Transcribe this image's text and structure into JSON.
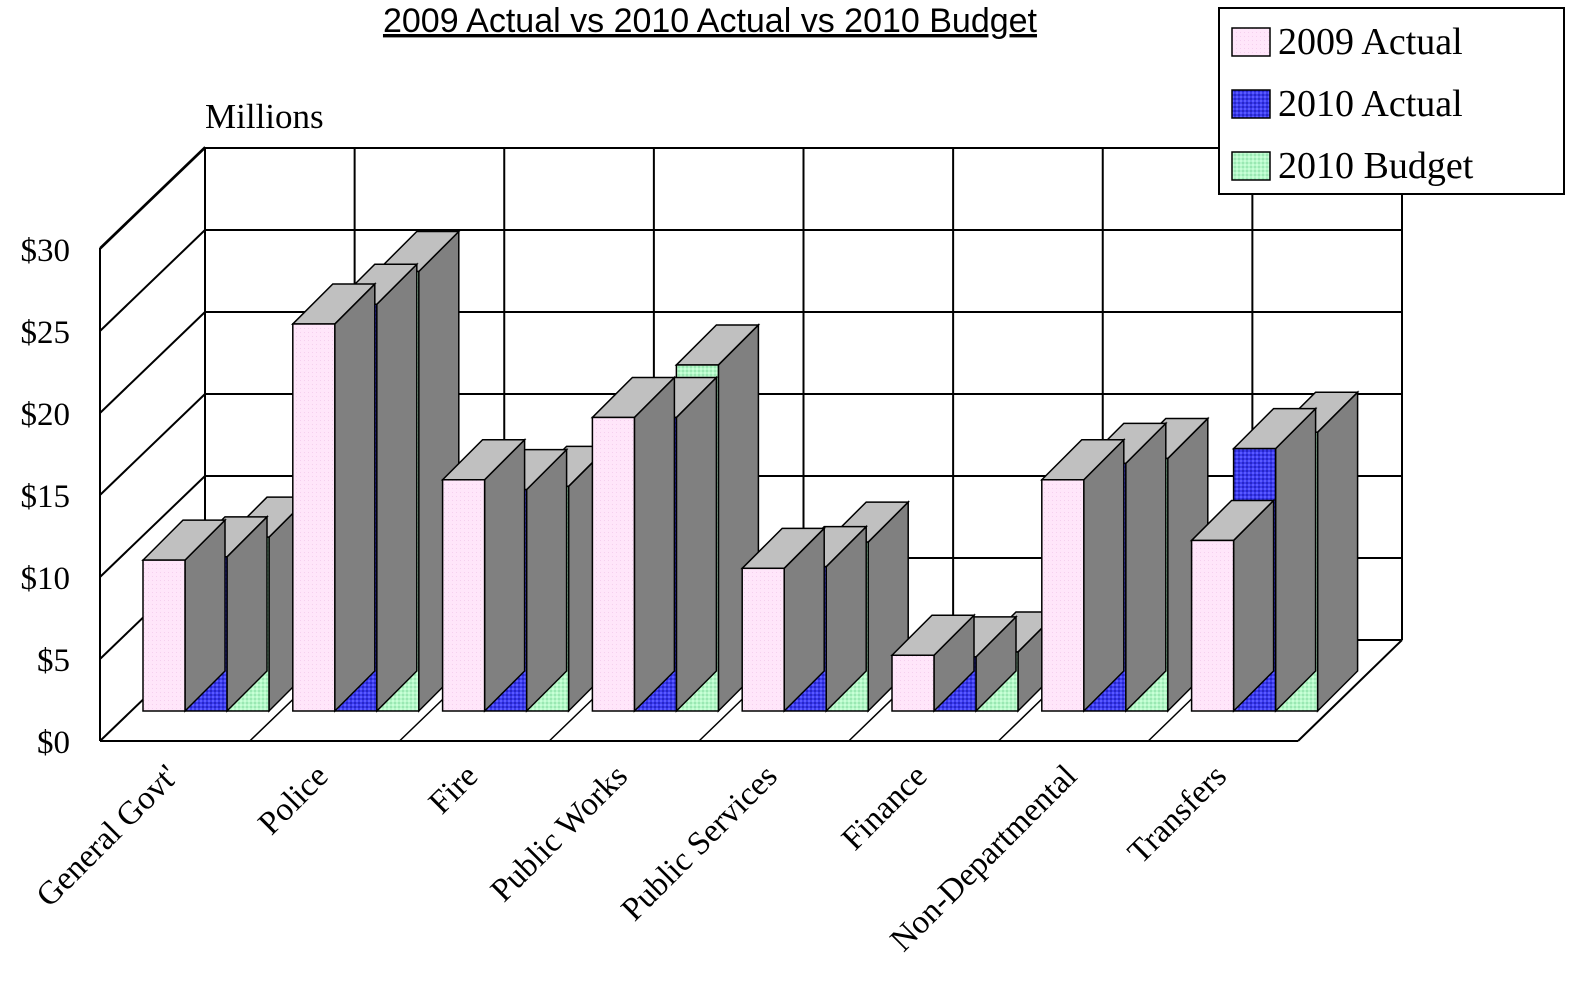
{
  "chart_data": {
    "type": "bar",
    "title": "2009 Actual vs 2010 Actual vs 2010 Budget",
    "ylabel": "Millions",
    "ylim": [
      0,
      30
    ],
    "yticks": [
      "$0",
      "$5",
      "$10",
      "$15",
      "$20",
      "$25",
      "$30"
    ],
    "categories": [
      "General Govt'",
      "Police",
      "Fire",
      "Public Works",
      "Public Services",
      "Finance",
      "Non-Departmental",
      "Transfers"
    ],
    "series": [
      {
        "name": "2009 Actual",
        "color": "#ffe6fa",
        "values": [
          9.2,
          23.6,
          14.1,
          17.9,
          8.7,
          3.4,
          14.1,
          10.4
        ]
      },
      {
        "name": "2010 Actual",
        "color": "#3b3bee",
        "values": [
          9.4,
          24.8,
          13.5,
          17.9,
          8.8,
          3.3,
          15.1,
          16.0
        ]
      },
      {
        "name": "2010 Budget",
        "color": "#b4f7c8",
        "values": [
          10.6,
          26.8,
          13.7,
          21.1,
          10.3,
          3.6,
          15.4,
          17.0
        ]
      }
    ],
    "legend_position": "top-right",
    "grid": true
  }
}
